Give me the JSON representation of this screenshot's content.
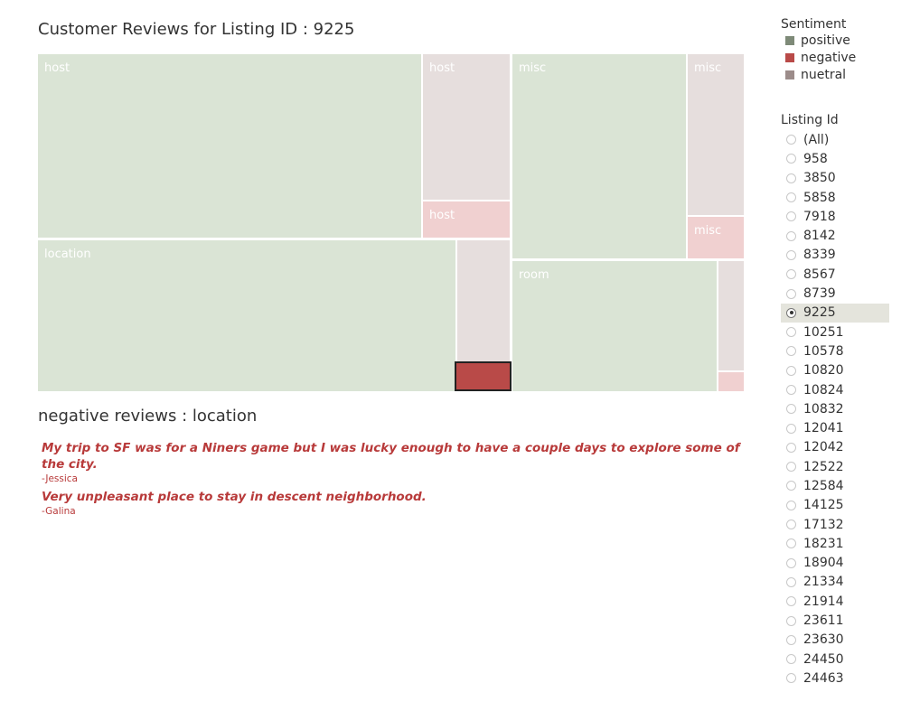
{
  "title": "Customer Reviews for Listing ID : 9225",
  "colors": {
    "positive": "#dae4d5",
    "negative": "#b94a48",
    "negative_light": "#f0d0d0",
    "neutral": "#e6dedd"
  },
  "treemap": {
    "cells": [
      {
        "label": "host",
        "sentiment": "positive"
      },
      {
        "label": "host",
        "sentiment": "neutral"
      },
      {
        "label": "host",
        "sentiment": "negative"
      },
      {
        "label": "location",
        "sentiment": "positive"
      },
      {
        "label": "",
        "sentiment": "neutral"
      },
      {
        "label": "",
        "sentiment": "negative",
        "selected": true
      },
      {
        "label": "misc",
        "sentiment": "positive"
      },
      {
        "label": "misc",
        "sentiment": "neutral"
      },
      {
        "label": "misc",
        "sentiment": "negative"
      },
      {
        "label": "room",
        "sentiment": "positive"
      },
      {
        "label": "",
        "sentiment": "neutral"
      },
      {
        "label": "",
        "sentiment": "negative"
      }
    ]
  },
  "negative_title": "negative reviews : location",
  "reviews": [
    {
      "text": "My trip to SF was for a Niners game but I was lucky enough to have a couple days to explore some of the city.",
      "author": "-Jessica"
    },
    {
      "text": "Very unpleasant place to stay in descent neighborhood.",
      "author": "-Galina"
    }
  ],
  "legend": {
    "title": "Sentiment",
    "items": [
      {
        "label": "positive",
        "color": "#7e8a78"
      },
      {
        "label": "negative",
        "color": "#b94a48"
      },
      {
        "label": "nuetral",
        "color": "#9c8c8a"
      }
    ]
  },
  "filter": {
    "title": "Listing Id",
    "selected": "9225",
    "options": [
      "(All)",
      "958",
      "3850",
      "5858",
      "7918",
      "8142",
      "8339",
      "8567",
      "8739",
      "9225",
      "10251",
      "10578",
      "10820",
      "10824",
      "10832",
      "12041",
      "12042",
      "12522",
      "12584",
      "14125",
      "17132",
      "18231",
      "18904",
      "21334",
      "21914",
      "23611",
      "23630",
      "24450",
      "24463"
    ]
  }
}
